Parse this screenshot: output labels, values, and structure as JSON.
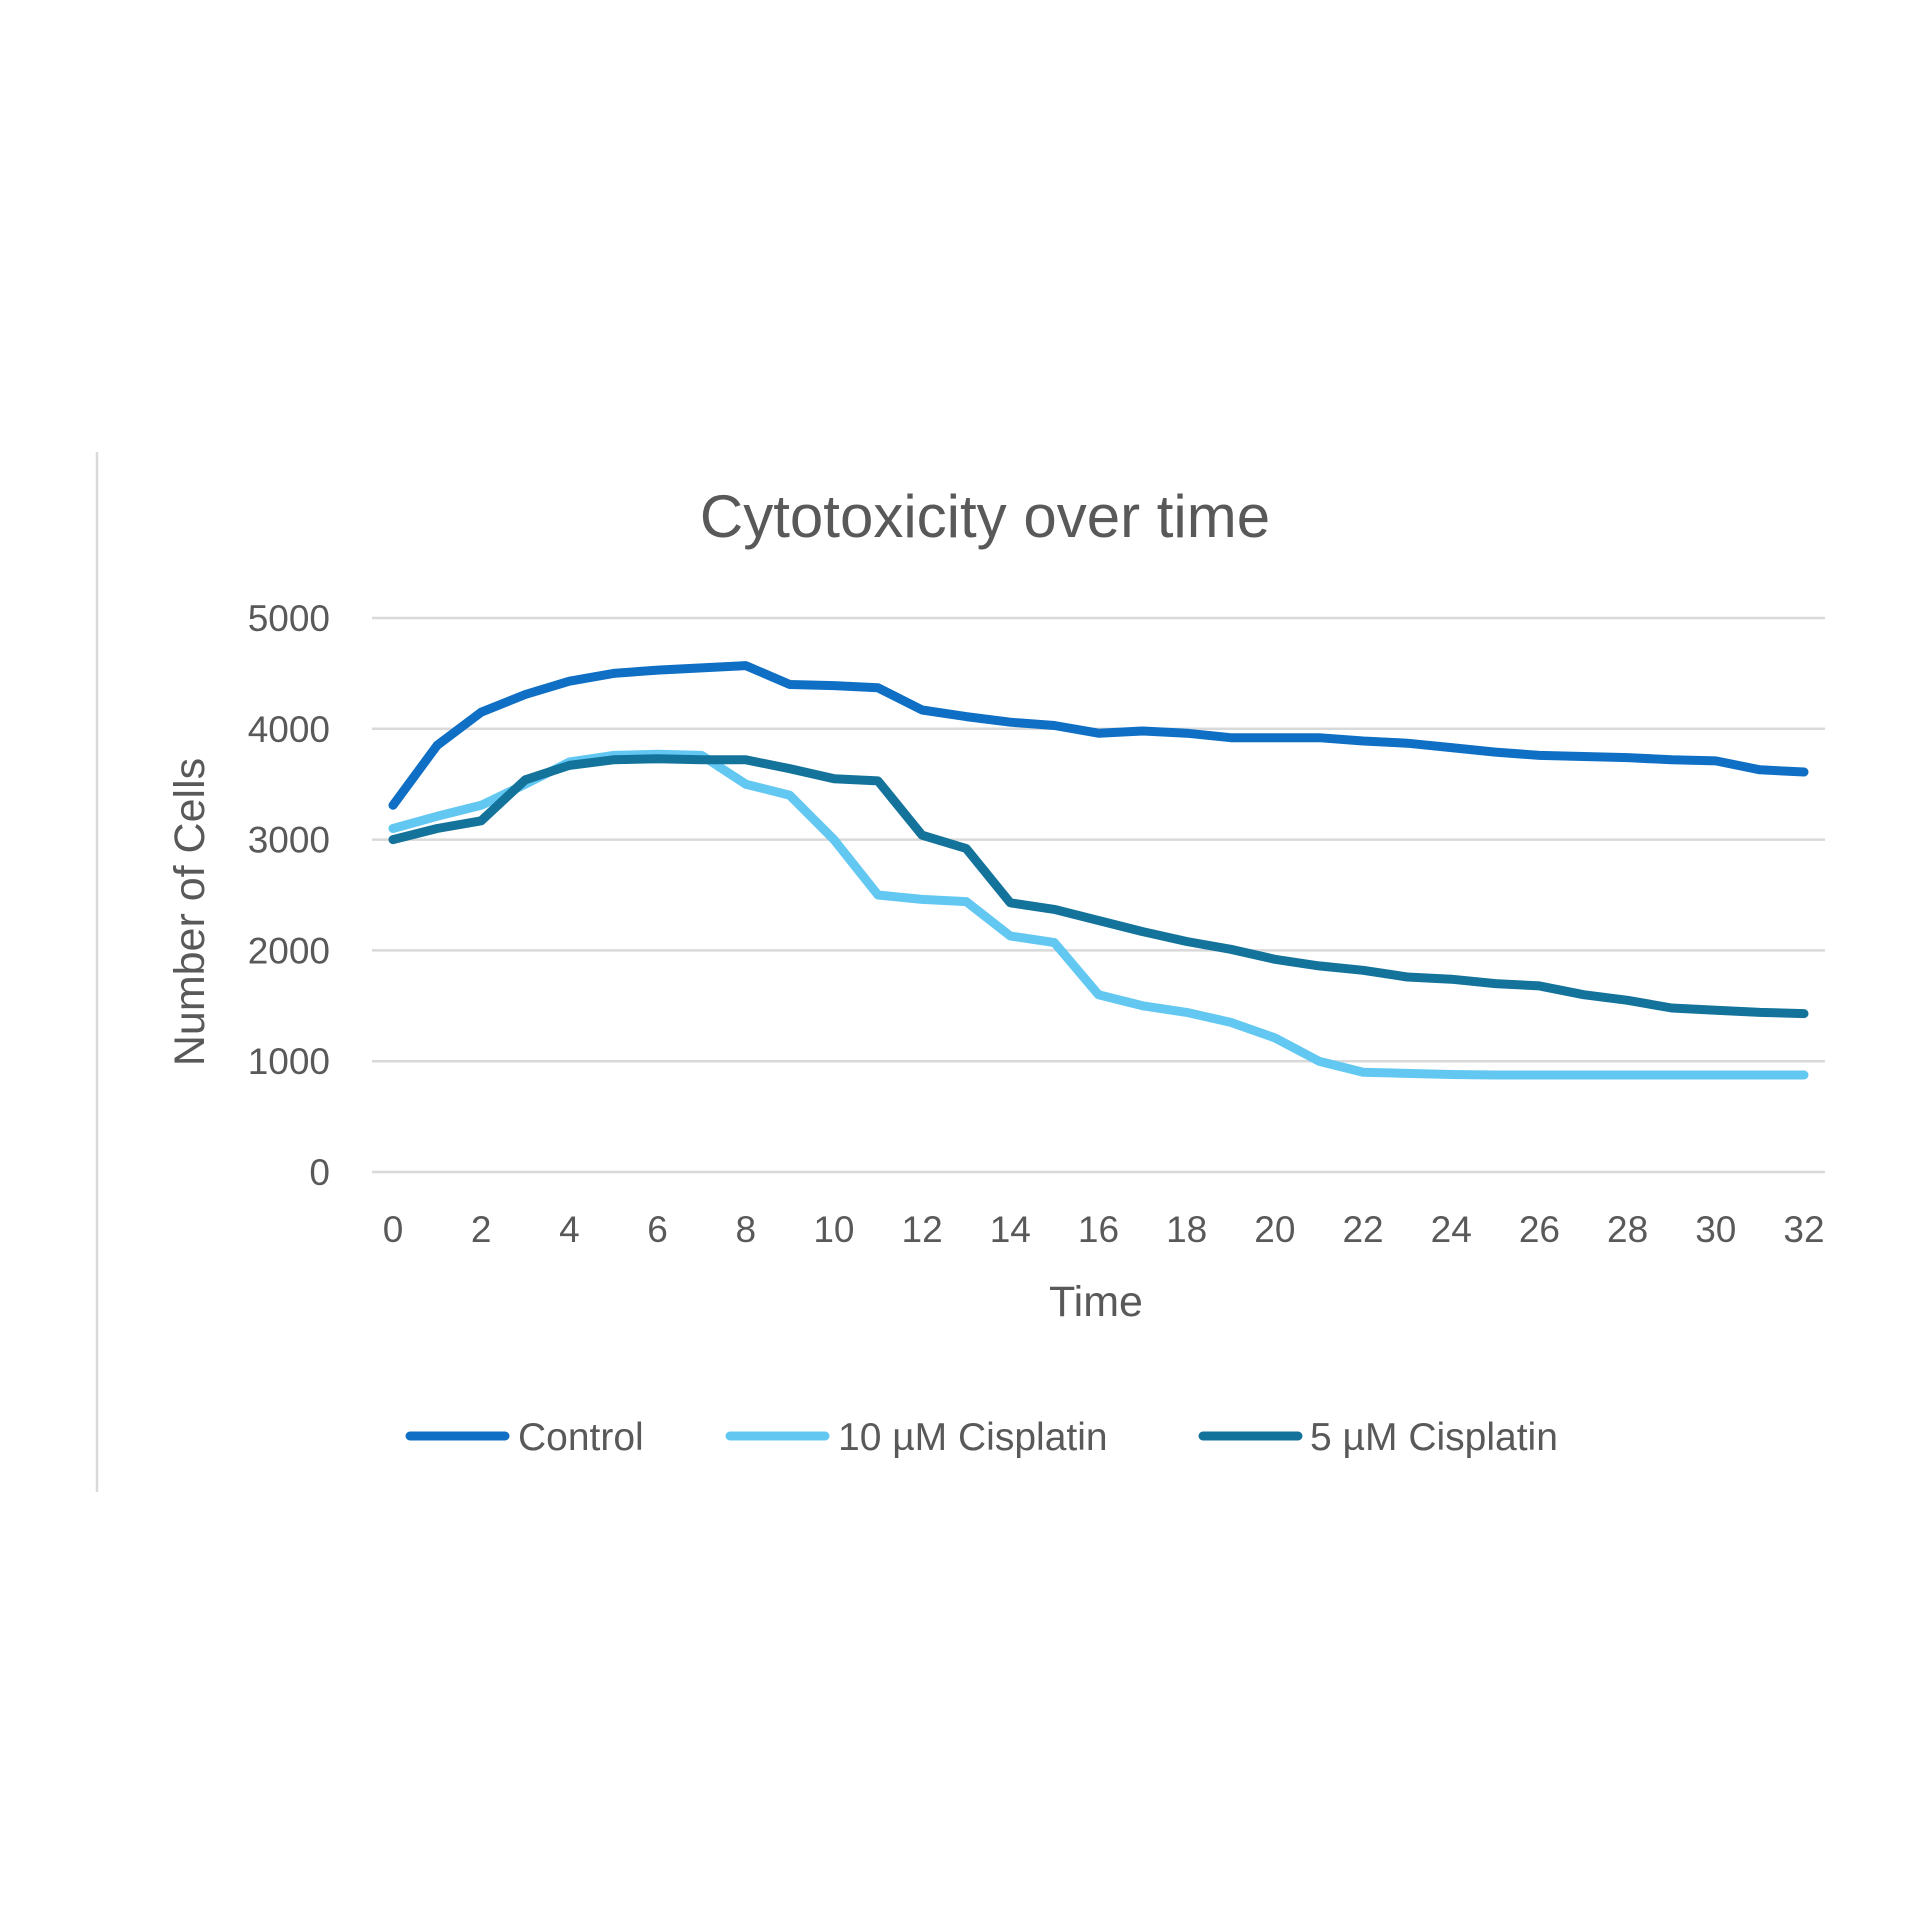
{
  "chart_data": {
    "type": "line",
    "title": "Cytotoxicity over time",
    "xlabel": "Time",
    "ylabel": "Number of Cells",
    "xlim": [
      0,
      32
    ],
    "ylim": [
      0,
      5000
    ],
    "x_ticks": [
      0,
      2,
      4,
      6,
      8,
      10,
      12,
      14,
      16,
      18,
      20,
      22,
      24,
      26,
      28,
      30,
      32
    ],
    "y_ticks": [
      0,
      1000,
      2000,
      3000,
      4000,
      5000
    ],
    "grid": true,
    "legend_position": "bottom",
    "x": [
      0,
      1,
      2,
      3,
      4,
      5,
      6,
      7,
      8,
      9,
      10,
      11,
      12,
      13,
      14,
      15,
      16,
      17,
      18,
      19,
      20,
      21,
      22,
      23,
      24,
      25,
      26,
      27,
      28,
      29,
      30,
      31,
      32
    ],
    "series": [
      {
        "name": "Control",
        "color": "#0E6FC4",
        "values": [
          3310,
          3850,
          4150,
          4310,
          4430,
          4500,
          4530,
          4550,
          4570,
          4400,
          4390,
          4370,
          4170,
          4110,
          4060,
          4030,
          3960,
          3980,
          3960,
          3920,
          3920,
          3920,
          3890,
          3870,
          3830,
          3790,
          3760,
          3750,
          3740,
          3720,
          3710,
          3630,
          3610
        ]
      },
      {
        "name": "10 µM Cisplatin",
        "color": "#62C8F2",
        "values": [
          3100,
          3210,
          3310,
          3500,
          3700,
          3760,
          3770,
          3760,
          3500,
          3400,
          3000,
          2500,
          2460,
          2440,
          2130,
          2070,
          1600,
          1500,
          1440,
          1350,
          1210,
          1000,
          900,
          890,
          880,
          875,
          875,
          875,
          875,
          875,
          875,
          875,
          875
        ]
      },
      {
        "name": "5 µM Cisplatin",
        "color": "#13739B",
        "values": [
          3000,
          3100,
          3170,
          3540,
          3670,
          3720,
          3730,
          3720,
          3720,
          3640,
          3550,
          3530,
          3040,
          2920,
          2430,
          2370,
          2270,
          2170,
          2080,
          2010,
          1920,
          1860,
          1820,
          1760,
          1740,
          1700,
          1680,
          1600,
          1550,
          1480,
          1460,
          1440,
          1430
        ]
      }
    ]
  }
}
